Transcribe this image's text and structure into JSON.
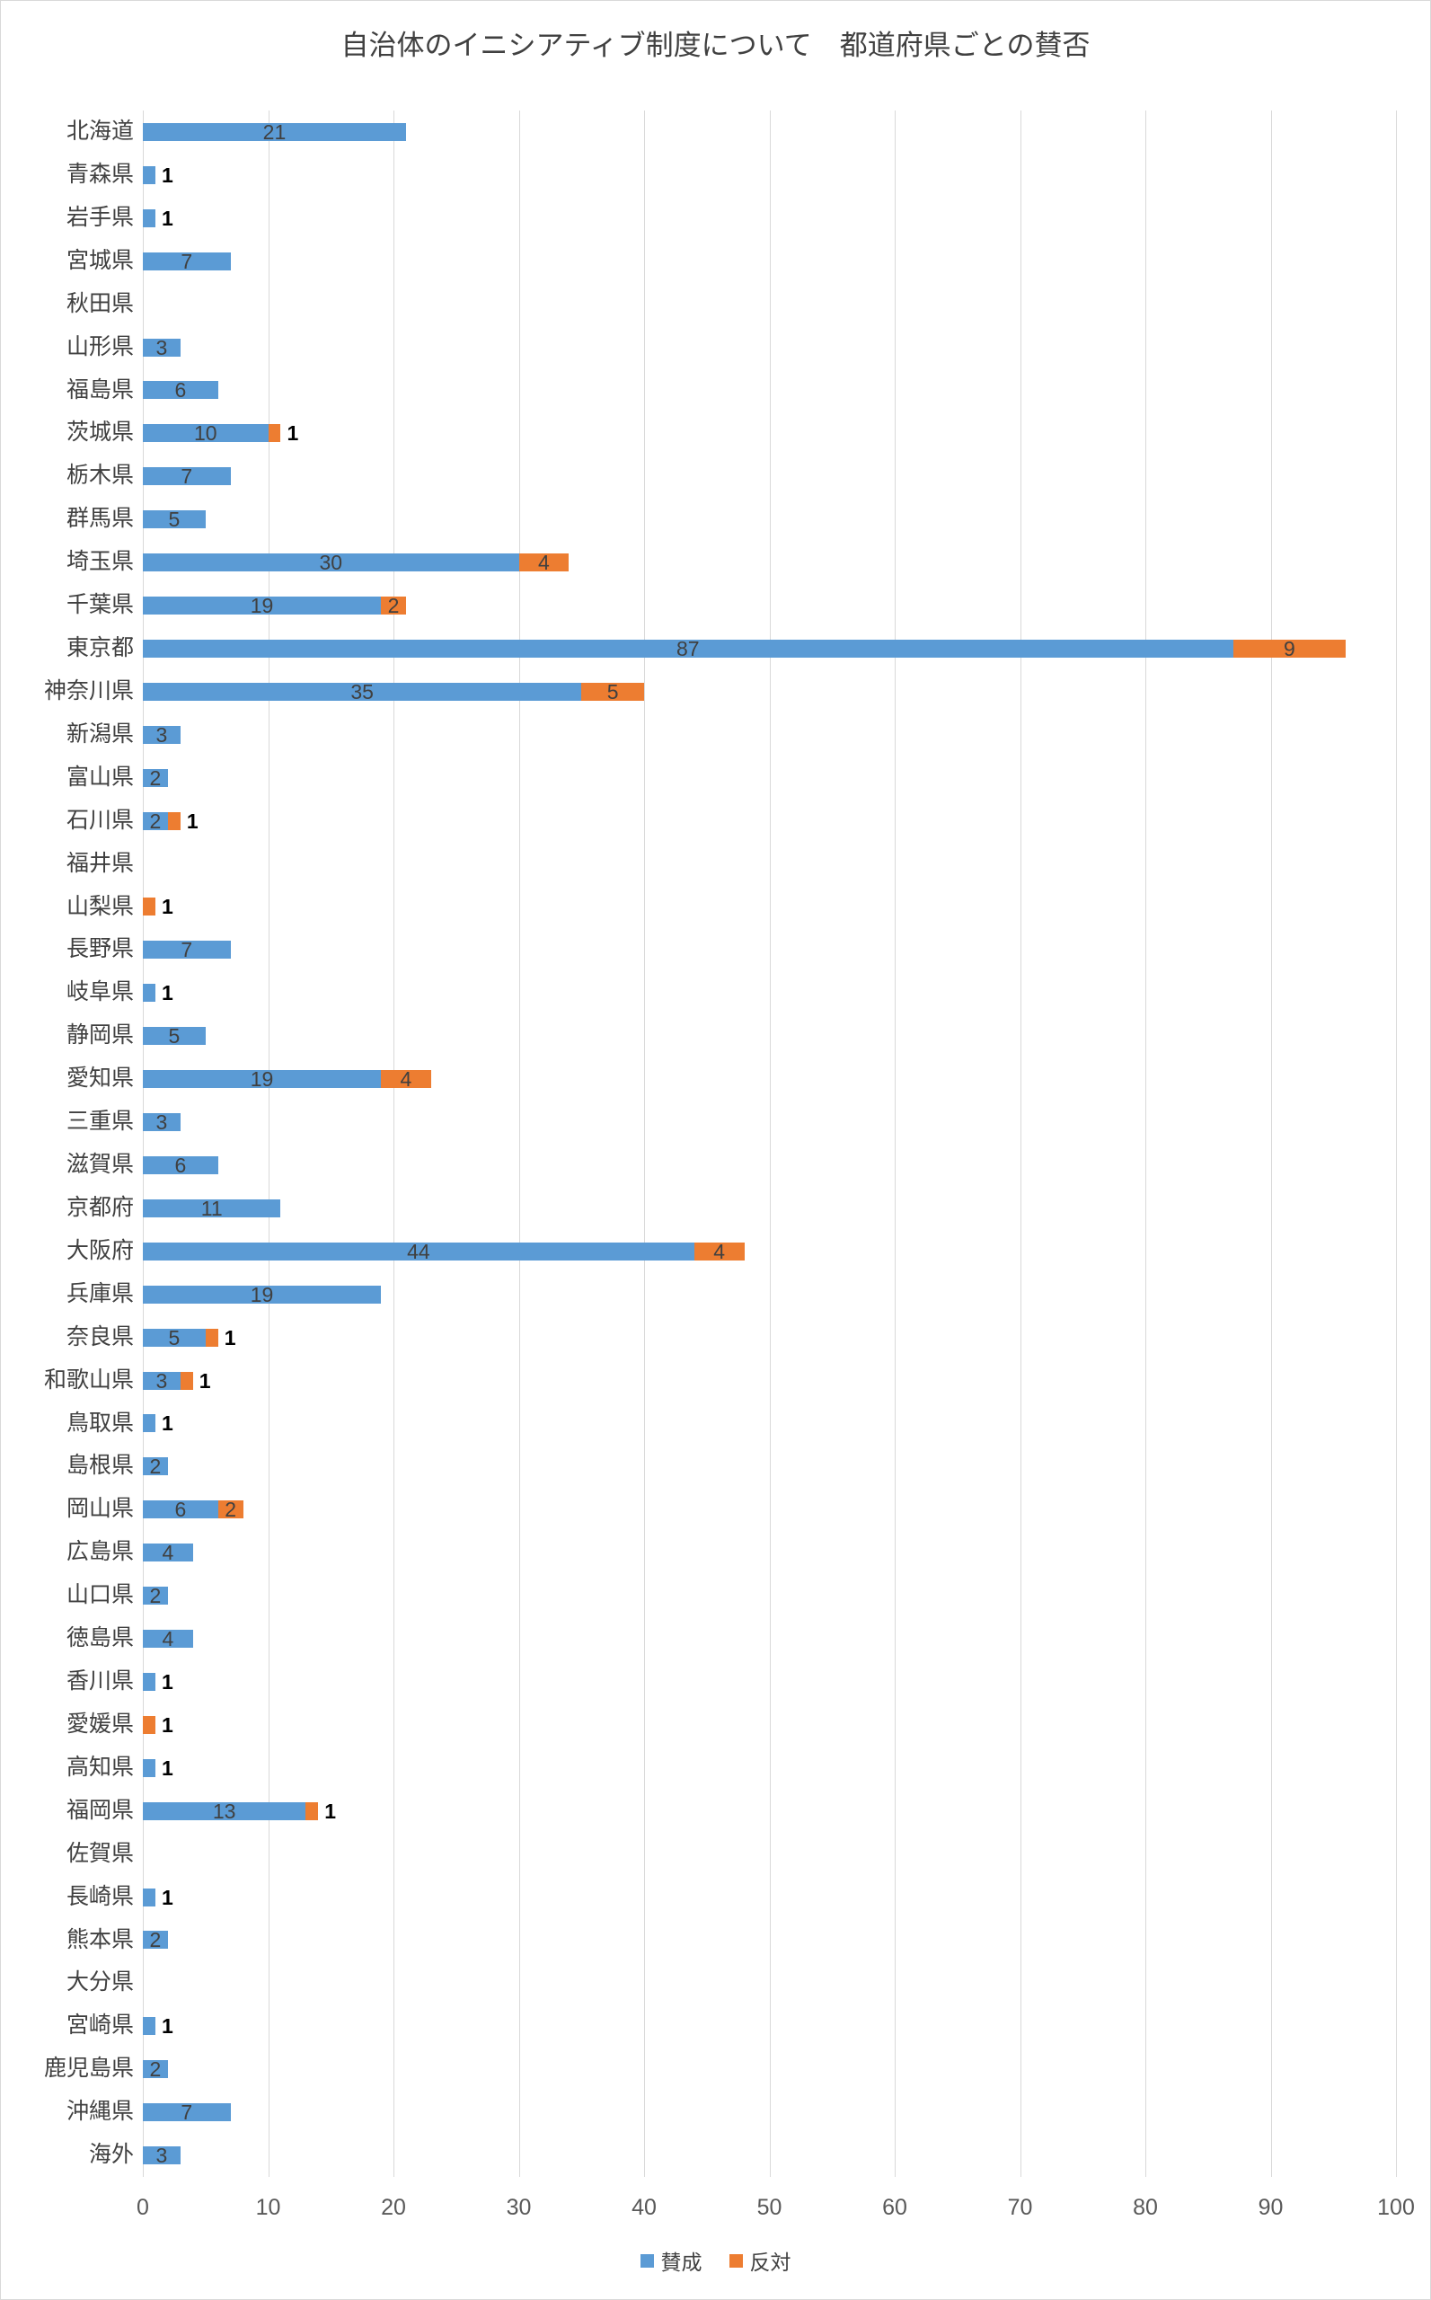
{
  "chart_data": {
    "type": "bar",
    "orientation": "horizontal",
    "stacked": true,
    "title": "自治体のイニシアティブ制度について　都道府県ごとの賛否",
    "categories": [
      "北海道",
      "青森県",
      "岩手県",
      "宮城県",
      "秋田県",
      "山形県",
      "福島県",
      "茨城県",
      "栃木県",
      "群馬県",
      "埼玉県",
      "千葉県",
      "東京都",
      "神奈川県",
      "新潟県",
      "富山県",
      "石川県",
      "福井県",
      "山梨県",
      "長野県",
      "岐阜県",
      "静岡県",
      "愛知県",
      "三重県",
      "滋賀県",
      "京都府",
      "大阪府",
      "兵庫県",
      "奈良県",
      "和歌山県",
      "鳥取県",
      "島根県",
      "岡山県",
      "広島県",
      "山口県",
      "徳島県",
      "香川県",
      "愛媛県",
      "高知県",
      "福岡県",
      "佐賀県",
      "長崎県",
      "熊本県",
      "大分県",
      "宮崎県",
      "鹿児島県",
      "沖縄県",
      "海外"
    ],
    "series": [
      {
        "name": "賛成",
        "color": "#5B9BD5",
        "values": [
          21,
          1,
          1,
          7,
          0,
          3,
          6,
          10,
          7,
          5,
          30,
          19,
          87,
          35,
          3,
          2,
          2,
          0,
          0,
          7,
          1,
          5,
          19,
          3,
          6,
          11,
          44,
          19,
          5,
          3,
          1,
          2,
          6,
          4,
          2,
          4,
          1,
          0,
          1,
          13,
          0,
          1,
          2,
          0,
          1,
          2,
          7,
          3
        ]
      },
      {
        "name": "反対",
        "color": "#ED7D31",
        "values": [
          0,
          0,
          0,
          0,
          0,
          0,
          0,
          1,
          0,
          0,
          4,
          2,
          9,
          5,
          0,
          0,
          1,
          0,
          1,
          0,
          0,
          0,
          4,
          0,
          0,
          0,
          4,
          0,
          1,
          1,
          0,
          0,
          2,
          0,
          0,
          0,
          0,
          1,
          0,
          1,
          0,
          0,
          0,
          0,
          0,
          0,
          0,
          0
        ]
      }
    ],
    "xlim": [
      0,
      100
    ],
    "x_ticks": [
      0,
      10,
      20,
      30,
      40,
      50,
      60,
      70,
      80,
      90,
      100
    ],
    "grid": true,
    "legend_position": "bottom",
    "data_label_rule": "segment values >= 2 labeled inside segment (gray), values == 1 labeled outside right of bar (black), zeros unlabeled"
  }
}
